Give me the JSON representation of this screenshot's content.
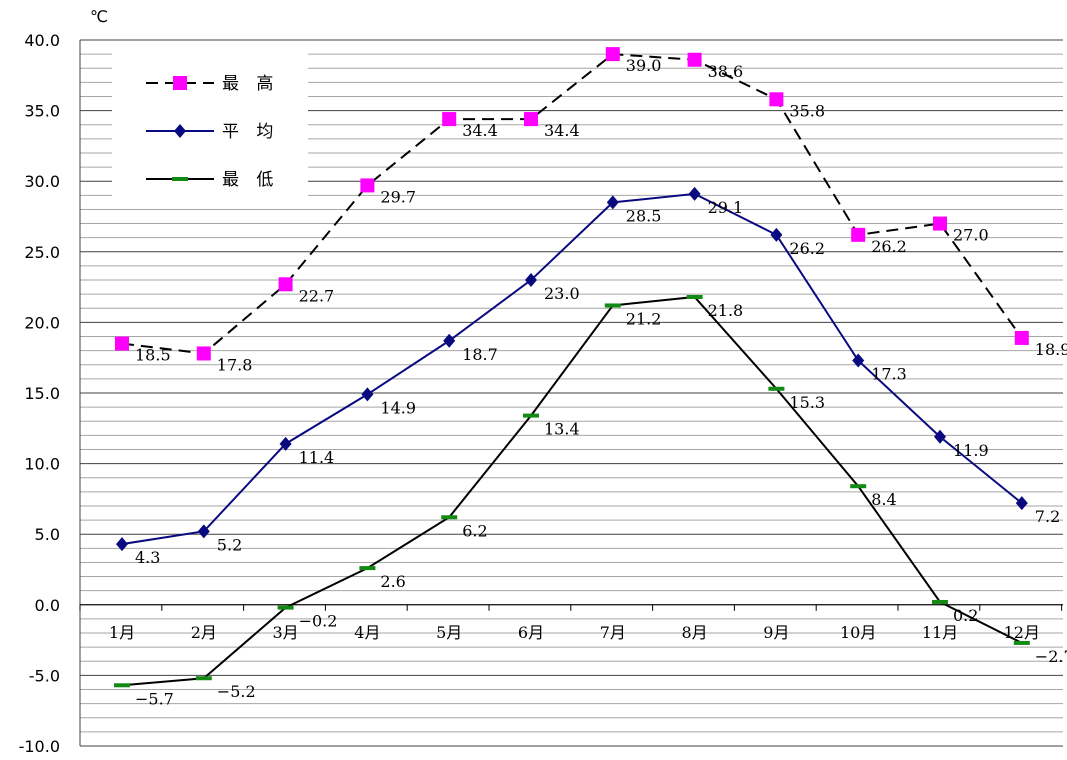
{
  "chart_data": {
    "type": "line",
    "unit": "℃",
    "categories": [
      "1月",
      "2月",
      "3月",
      "4月",
      "5月",
      "6月",
      "7月",
      "8月",
      "9月",
      "10月",
      "11月",
      "12月"
    ],
    "ylim": [
      -10,
      40
    ],
    "yticks": [
      "40.0",
      "35.0",
      "30.0",
      "25.0",
      "20.0",
      "15.0",
      "10.0",
      "5.0",
      "0.0",
      "-5.0",
      "-10.0"
    ],
    "grid": true,
    "legend_position": "top-left",
    "series": [
      {
        "name": "最 高",
        "values": [
          18.5,
          17.8,
          22.7,
          29.7,
          34.4,
          34.4,
          39.0,
          38.6,
          35.8,
          26.2,
          27.0,
          18.9
        ],
        "labels": [
          "18.5",
          "17.8",
          "22.7",
          "29.7",
          "34.4",
          "34.4",
          "39.0",
          "38.6",
          "35.8",
          "26.2",
          "27.0",
          "18.9"
        ],
        "color": "#000000",
        "marker_color": "#ff00ff",
        "dash": true
      },
      {
        "name": "平 均",
        "values": [
          4.3,
          5.2,
          11.4,
          14.9,
          18.7,
          23.0,
          28.5,
          29.1,
          26.2,
          17.3,
          11.9,
          7.2
        ],
        "labels": [
          "4.3",
          "5.2",
          "11.4",
          "14.9",
          "18.7",
          "23.0",
          "28.5",
          "29.1",
          "26.2",
          "17.3",
          "11.9",
          "7.2"
        ],
        "color": "#0a0a80",
        "marker_color": "#0a0a80",
        "dash": false
      },
      {
        "name": "最 低",
        "values": [
          -5.7,
          -5.2,
          -0.2,
          2.6,
          6.2,
          13.4,
          21.2,
          21.8,
          15.3,
          8.4,
          0.2,
          -2.7
        ],
        "labels": [
          "−5.7",
          "−5.2",
          "−0.2",
          "2.6",
          "6.2",
          "13.4",
          "21.2",
          "21.8",
          "15.3",
          "8.4",
          "0.2",
          "−2.7"
        ],
        "color": "#000000",
        "marker_color": "#138a13",
        "dash": false
      }
    ]
  }
}
